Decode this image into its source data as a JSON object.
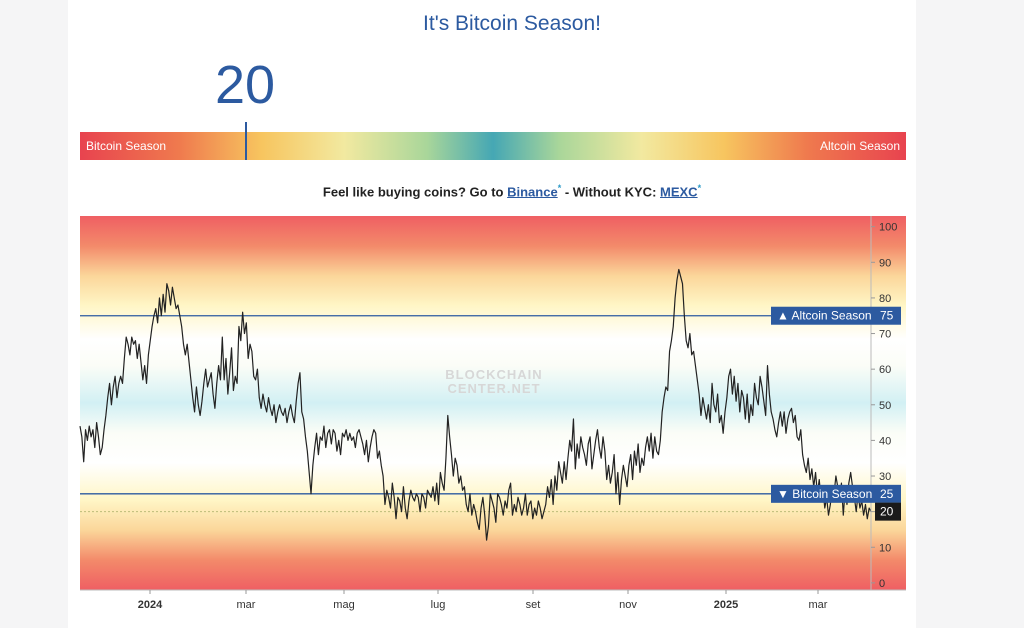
{
  "page": {
    "title": "It's Bitcoin Season!",
    "index_value": "20",
    "gauge": {
      "left_label": "Bitcoin Season",
      "right_label": "Altcoin Season",
      "marker_value": 20
    },
    "promo": {
      "text_before": "Feel like buying coins? Go to ",
      "link1": "Binance",
      "star1": "*",
      "text_middle": " - Without KYC: ",
      "link2": "MEXC",
      "star2": "*"
    },
    "watermark": [
      "BLOCKCHAIN",
      "CENTER.NET"
    ]
  },
  "chart_data": {
    "type": "line",
    "ylim": [
      -2,
      103
    ],
    "yticks": [
      "0",
      "10",
      "20",
      "30",
      "40",
      "50",
      "60",
      "70",
      "80",
      "90",
      "100"
    ],
    "xtick_labels": [
      "2024",
      "mar",
      "mag",
      "lug",
      "set",
      "nov",
      "2025",
      "mar"
    ],
    "bold_xticks": [
      "2024",
      "2025"
    ],
    "reference_lines": [
      {
        "label": "▲ Altcoin Season",
        "value": 75
      },
      {
        "label": "▼ Bitcoin Season",
        "value": 25
      }
    ],
    "current_value": {
      "label": "20",
      "value": 20
    },
    "grid": false,
    "series": [
      {
        "values": [
          44,
          41,
          34,
          43,
          40,
          44,
          41,
          43,
          38,
          45,
          41,
          36,
          38,
          43,
          47,
          52,
          56,
          50,
          55,
          58,
          52,
          56,
          58,
          56,
          63,
          69,
          67,
          64,
          69,
          67,
          68,
          63,
          67,
          62,
          57,
          61,
          56,
          64,
          68,
          72,
          75,
          77,
          73,
          80,
          75,
          81,
          76,
          84,
          82,
          78,
          83,
          80,
          77,
          78,
          75,
          72,
          67,
          64,
          67,
          62,
          57,
          52,
          48,
          55,
          50,
          47,
          51,
          56,
          60,
          55,
          57,
          59,
          53,
          49,
          56,
          61,
          57,
          69,
          57,
          63,
          53,
          59,
          66,
          54,
          58,
          56,
          72,
          68,
          76,
          70,
          73,
          63,
          67,
          65,
          58,
          57,
          60,
          52,
          49,
          53,
          50,
          48,
          52,
          49,
          47,
          50,
          45,
          48,
          50,
          48,
          47,
          49,
          45,
          48,
          50,
          47,
          45,
          51,
          56,
          59,
          48,
          46,
          41,
          37,
          31,
          25,
          33,
          38,
          42,
          36,
          41,
          40,
          44,
          38,
          42,
          43,
          39,
          43,
          42,
          37,
          40,
          36,
          42,
          41,
          43,
          40,
          42,
          40,
          41,
          38,
          42,
          43,
          41,
          39,
          36,
          40,
          34,
          38,
          41,
          43,
          42,
          35,
          37,
          33,
          30,
          22,
          26,
          24,
          21,
          28,
          24,
          18,
          24,
          23,
          20,
          27,
          21,
          18,
          23,
          26,
          24,
          23,
          25,
          24,
          20,
          25,
          24,
          21,
          26,
          25,
          24,
          27,
          23,
          28,
          22,
          31,
          28,
          26,
          35,
          47,
          41,
          36,
          30,
          35,
          33,
          28,
          30,
          26,
          27,
          22,
          20,
          25,
          19,
          22,
          20,
          17,
          15,
          21,
          24,
          19,
          12,
          16,
          25,
          23,
          21,
          17,
          25,
          24,
          22,
          19,
          23,
          21,
          26,
          28,
          19,
          22,
          20,
          24,
          22,
          19,
          21,
          25,
          19,
          22,
          23,
          18,
          21,
          19,
          23,
          21,
          18,
          20,
          22,
          27,
          24,
          29,
          22,
          30,
          26,
          34,
          31,
          28,
          34,
          29,
          35,
          40,
          37,
          46,
          32,
          39,
          35,
          41,
          38,
          36,
          33,
          39,
          41,
          32,
          36,
          40,
          43,
          38,
          35,
          41,
          37,
          29,
          33,
          28,
          31,
          36,
          25,
          31,
          22,
          29,
          33,
          30,
          27,
          33,
          36,
          29,
          37,
          33,
          39,
          31,
          35,
          33,
          38,
          41,
          37,
          42,
          35,
          41,
          37,
          36,
          40,
          48,
          52,
          55,
          54,
          65,
          68,
          72,
          80,
          85,
          88,
          86,
          84,
          75,
          68,
          66,
          70,
          64,
          65,
          61,
          57,
          53,
          47,
          52,
          49,
          46,
          50,
          45,
          56,
          50,
          48,
          53,
          45,
          47,
          42,
          48,
          52,
          58,
          60,
          53,
          58,
          51,
          56,
          48,
          54,
          52,
          46,
          53,
          45,
          50,
          47,
          56,
          52,
          50,
          58,
          55,
          51,
          47,
          61,
          53,
          48,
          46,
          43,
          41,
          45,
          48,
          44,
          48,
          42,
          46,
          48,
          49,
          45,
          47,
          41,
          40,
          43,
          36,
          33,
          31,
          35,
          29,
          32,
          27,
          31,
          25,
          29,
          23,
          26,
          21,
          24,
          19,
          22,
          27,
          25,
          30,
          27,
          23,
          28,
          19,
          26,
          22,
          28,
          31,
          27,
          24,
          20,
          25,
          21,
          23,
          19,
          22,
          18,
          21,
          20
        ]
      }
    ]
  }
}
